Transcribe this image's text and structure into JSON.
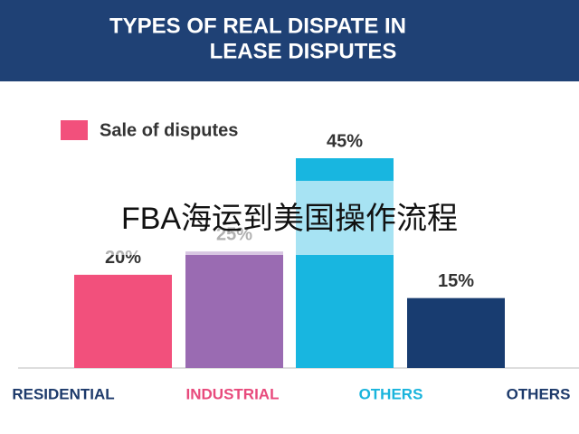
{
  "chart_data": {
    "type": "bar",
    "title": [
      "TYPES OF REAL DISPATE IN",
      "LEASE DISPUTES"
    ],
    "legend": "Sale of disputes",
    "categories": [
      "RESIDENTIAL",
      "INDUSTRIAL",
      "OTHERS",
      "OTHERS"
    ],
    "category_colors": [
      "#1d3a6b",
      "#e84a7c",
      "#19b4dc",
      "#1d3a6b"
    ],
    "values": [
      20,
      25,
      45,
      15
    ],
    "value_labels": [
      "20%",
      "25%",
      "45%",
      "15%"
    ],
    "colors": [
      "#f2507c",
      "#9a6bb2",
      "#18b6e0",
      "#183c70"
    ],
    "legend_color": "#f2507c",
    "ylim": [
      0,
      45
    ],
    "overlay_text": "FBA海运到美国操作流程"
  }
}
